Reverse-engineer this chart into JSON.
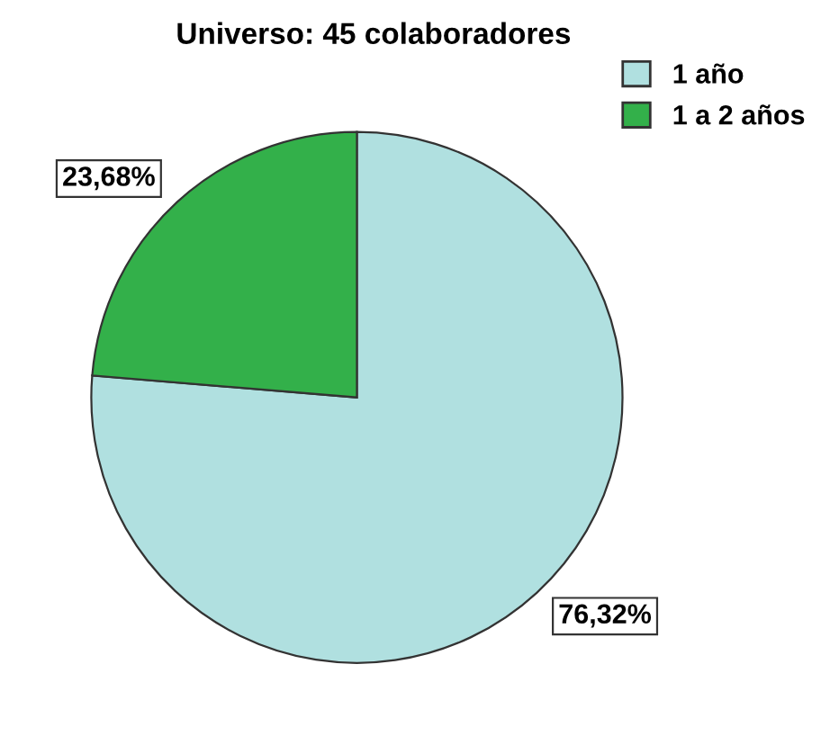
{
  "chart_data": {
    "type": "pie",
    "title": "Universo: 45 colaboradores",
    "categories": [
      "1 año",
      "1 a 2 años"
    ],
    "values": [
      76.32,
      23.68
    ],
    "colors": [
      "#b0e0e0",
      "#33b04a"
    ],
    "value_labels": [
      "76,32%",
      "23,68%"
    ],
    "legend": "top right"
  }
}
